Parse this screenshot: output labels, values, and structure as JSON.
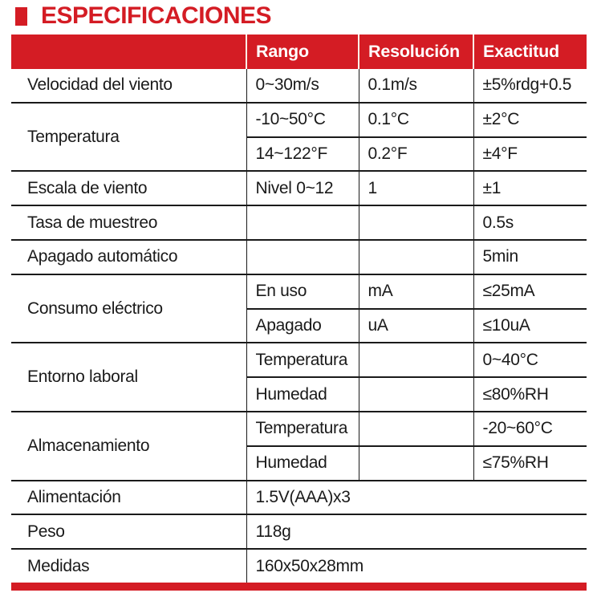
{
  "page": {
    "title": "ESPECIFICACIONES"
  },
  "colors": {
    "accent_red": "#d41c24",
    "text": "#1a1a1a",
    "border": "#1a1a1a",
    "header_text": "#ffffff"
  },
  "table": {
    "headers": {
      "rango": "Rango",
      "resolucion": "Resolución",
      "exactitud": "Exactitud"
    },
    "groups": [
      {
        "label": "Velocidad del viento",
        "rows": [
          [
            "0~30m/s",
            "0.1m/s",
            "±5%rdg+0.5"
          ]
        ]
      },
      {
        "label": "Temperatura",
        "rows": [
          [
            "-10~50°C",
            "0.1°C",
            "±2°C"
          ],
          [
            "14~122°F",
            "0.2°F",
            "±4°F"
          ]
        ]
      },
      {
        "label": "Escala de viento",
        "rows": [
          [
            "Nivel 0~12",
            "1",
            "±1"
          ]
        ]
      },
      {
        "label": "Tasa de muestreo",
        "rows": [
          [
            "",
            "",
            "0.5s"
          ]
        ]
      },
      {
        "label": "Apagado automático",
        "rows": [
          [
            "",
            "",
            "5min"
          ]
        ]
      },
      {
        "label": "Consumo eléctrico",
        "rows": [
          [
            "En uso",
            "mA",
            "≤25mA"
          ],
          [
            "Apagado",
            "uA",
            "≤10uA"
          ]
        ]
      },
      {
        "label": "Entorno laboral",
        "rows": [
          [
            "Temperatura",
            "",
            "0~40°C"
          ],
          [
            "Humedad",
            "",
            "≤80%RH"
          ]
        ]
      },
      {
        "label": "Almacenamiento",
        "rows": [
          [
            "Temperatura",
            "",
            "-20~60°C"
          ],
          [
            "Humedad",
            "",
            "≤75%RH"
          ]
        ]
      },
      {
        "label": "Alimentación",
        "value": "1.5V(AAA)x3"
      },
      {
        "label": "Peso",
        "value": "118g"
      },
      {
        "label": "Medidas",
        "value": "160x50x28mm"
      }
    ]
  }
}
